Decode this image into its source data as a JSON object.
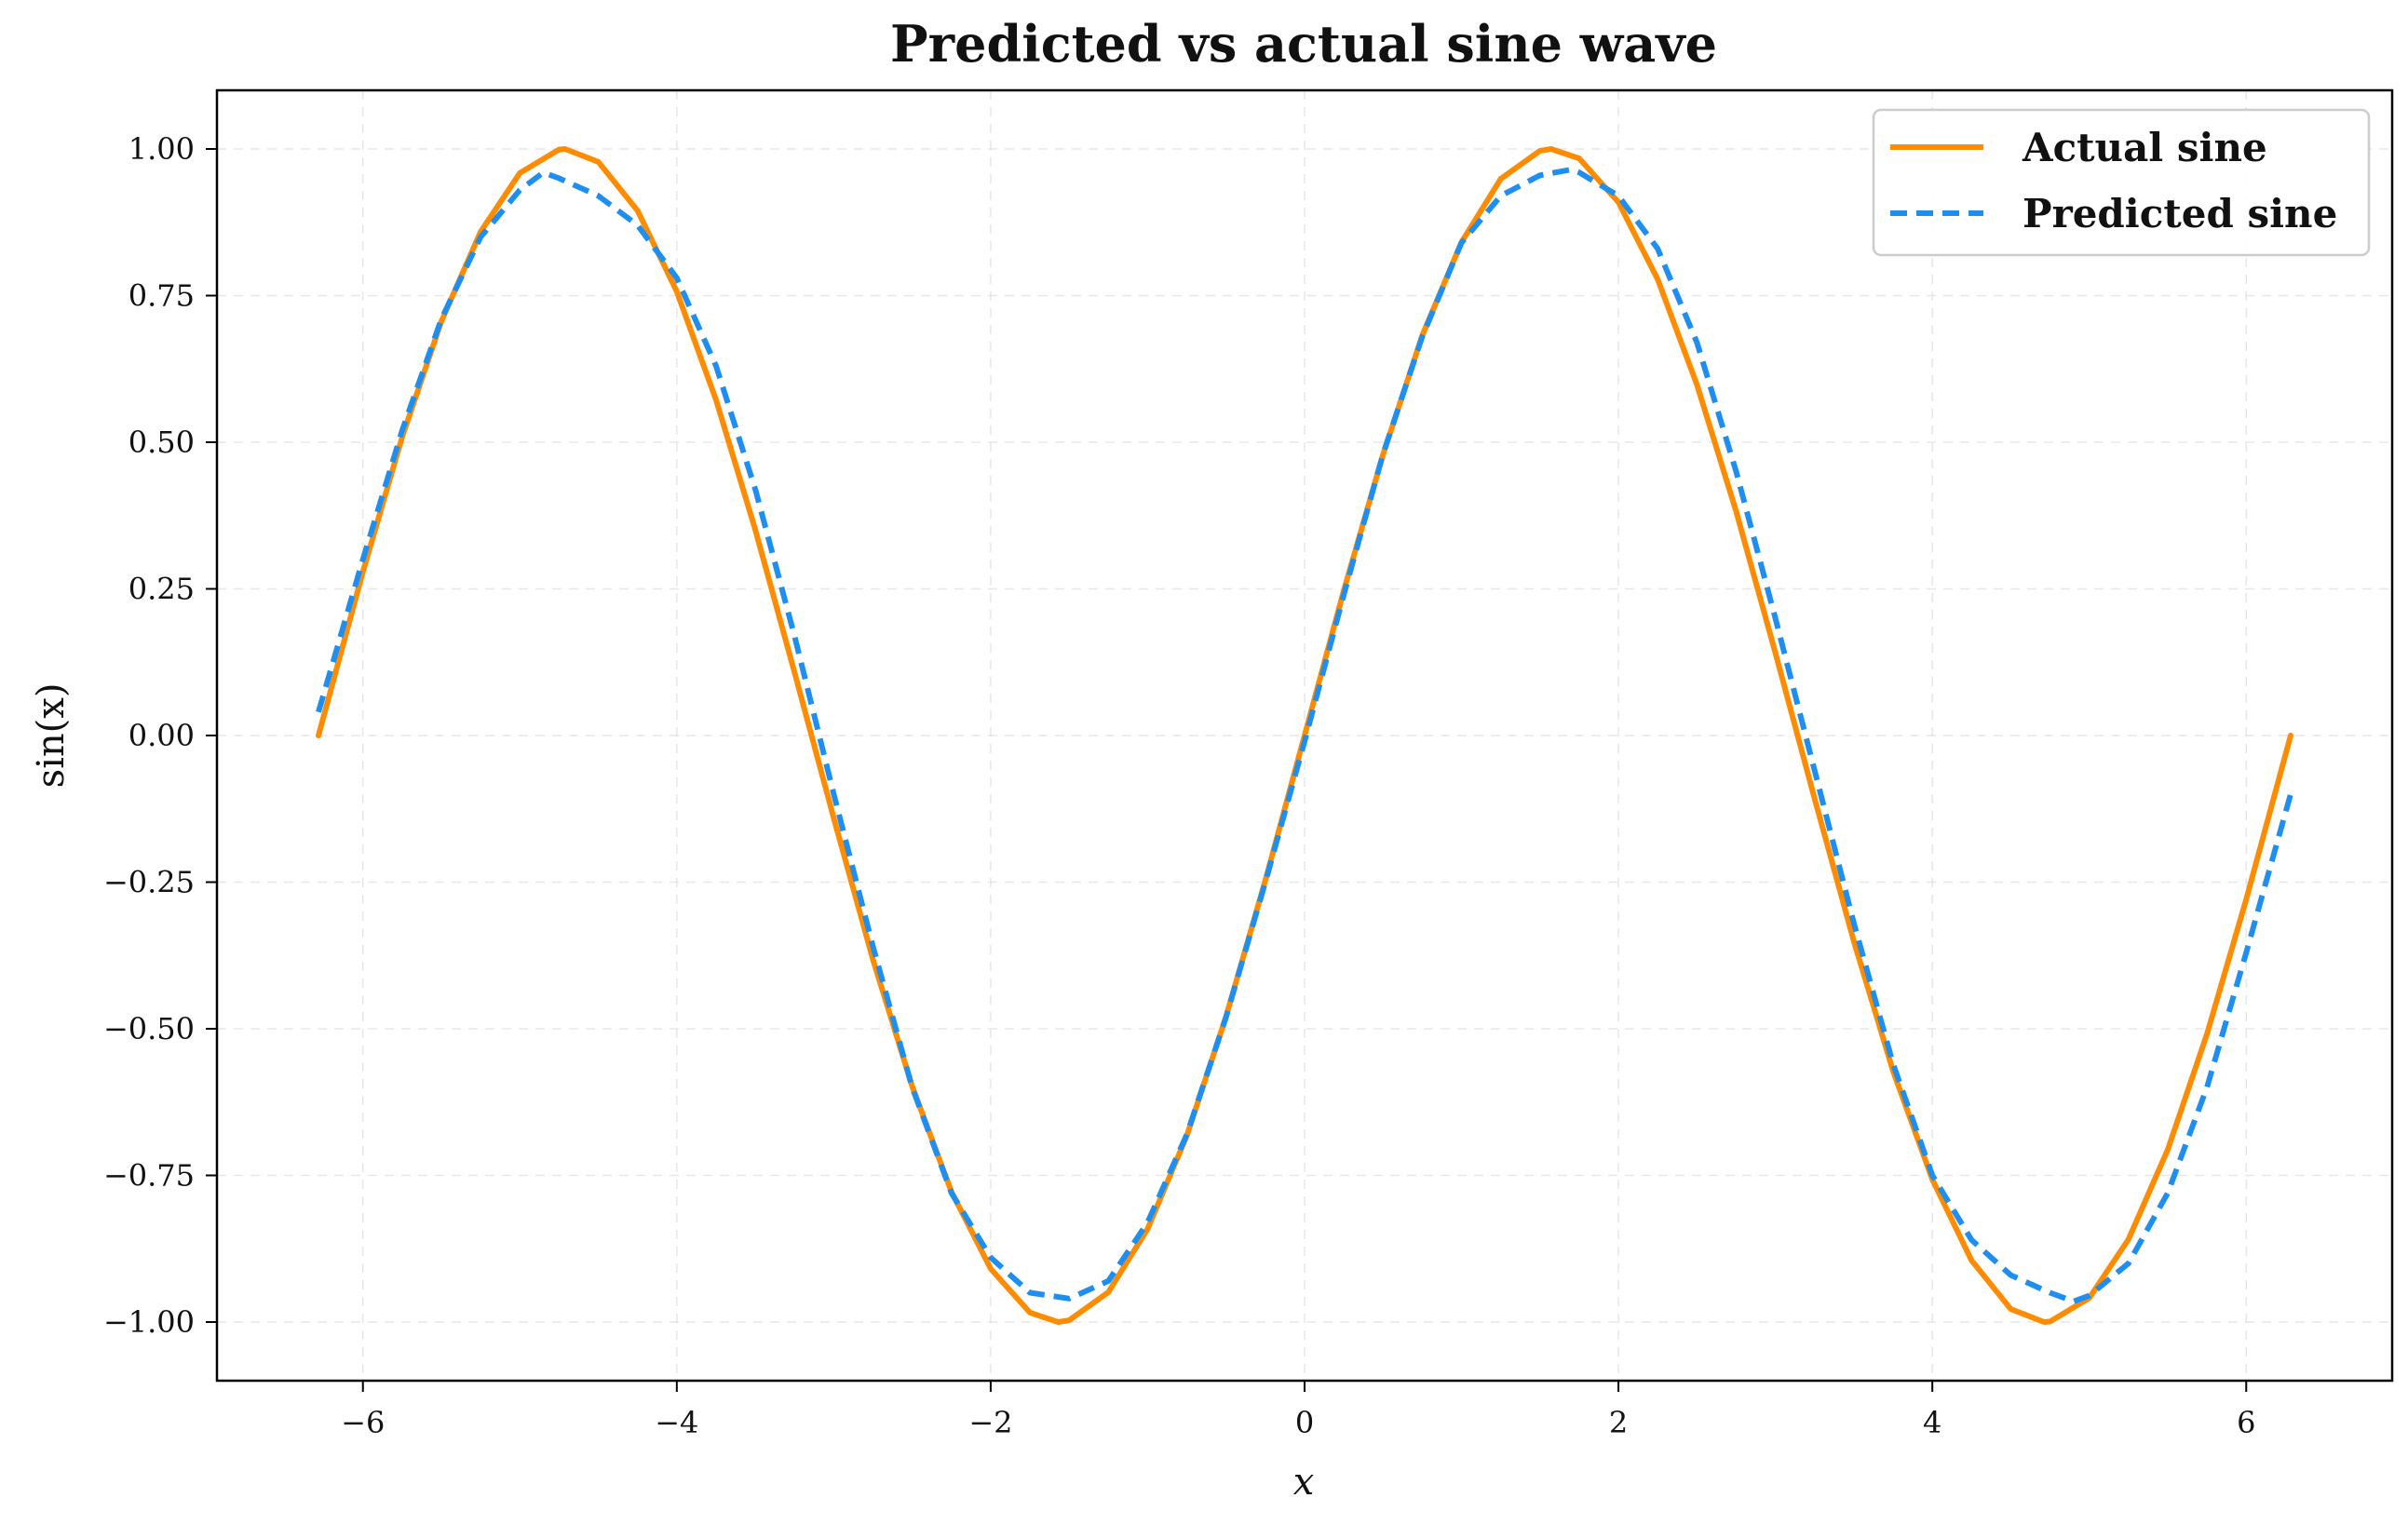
{
  "chart_data": {
    "type": "line",
    "title": "Predicted vs actual sine wave",
    "xlabel": "x",
    "ylabel": "sin(x)",
    "xlim": [
      -6.93,
      6.93
    ],
    "ylim": [
      -1.1,
      1.1
    ],
    "x_ticks": [
      -6,
      -4,
      -2,
      0,
      2,
      4,
      6
    ],
    "x_tick_labels": [
      "−6",
      "−4",
      "−2",
      "0",
      "2",
      "4",
      "6"
    ],
    "y_ticks": [
      1.0,
      0.75,
      0.5,
      0.25,
      0.0,
      -0.25,
      -0.5,
      -0.75,
      -1.0
    ],
    "y_tick_labels": [
      "1.00",
      "0.75",
      "0.50",
      "0.25",
      "0.00",
      "−0.25",
      "−0.50",
      "−0.75",
      "−1.00"
    ],
    "grid": true,
    "legend_position": "top-right",
    "series": [
      {
        "name": "Actual sine",
        "color": "#ff8c00",
        "style": "solid",
        "x": [
          -6.2832,
          -6.0,
          -5.75,
          -5.5,
          -5.25,
          -5.0,
          -4.75,
          -4.7124,
          -4.5,
          -4.25,
          -4.0,
          -3.75,
          -3.5,
          -3.25,
          -3.0,
          -2.75,
          -2.5,
          -2.25,
          -2.0,
          -1.75,
          -1.5708,
          -1.5,
          -1.25,
          -1.0,
          -0.75,
          -0.5,
          -0.25,
          0.0,
          0.25,
          0.5,
          0.75,
          1.0,
          1.25,
          1.5,
          1.5708,
          1.75,
          2.0,
          2.25,
          2.5,
          2.75,
          3.0,
          3.25,
          3.5,
          3.75,
          4.0,
          4.25,
          4.5,
          4.7124,
          4.75,
          5.0,
          5.25,
          5.5,
          5.75,
          6.0,
          6.2832
        ],
        "y": [
          0.0,
          0.279,
          0.509,
          0.706,
          0.859,
          0.959,
          0.999,
          1.0,
          0.978,
          0.895,
          0.757,
          0.572,
          0.351,
          0.108,
          -0.141,
          -0.382,
          -0.598,
          -0.778,
          -0.909,
          -0.984,
          -1.0,
          -0.997,
          -0.949,
          -0.841,
          -0.682,
          -0.479,
          -0.247,
          0.0,
          0.247,
          0.479,
          0.682,
          0.841,
          0.949,
          0.997,
          1.0,
          0.984,
          0.909,
          0.778,
          0.598,
          0.382,
          0.141,
          -0.108,
          -0.351,
          -0.572,
          -0.757,
          -0.895,
          -0.978,
          -1.0,
          -0.999,
          -0.959,
          -0.859,
          -0.706,
          -0.509,
          -0.279,
          0.0
        ]
      },
      {
        "name": "Predicted sine",
        "color": "#1e8ff0",
        "style": "dashed",
        "x": [
          -6.2832,
          -6.0,
          -5.75,
          -5.5,
          -5.25,
          -5.0,
          -4.85,
          -4.75,
          -4.5,
          -4.25,
          -4.0,
          -3.75,
          -3.5,
          -3.25,
          -3.0,
          -2.75,
          -2.5,
          -2.25,
          -2.0,
          -1.75,
          -1.5,
          -1.25,
          -1.0,
          -0.75,
          -0.5,
          -0.25,
          0.0,
          0.25,
          0.5,
          0.75,
          1.0,
          1.25,
          1.5,
          1.7,
          1.75,
          2.0,
          2.25,
          2.5,
          2.75,
          3.0,
          3.25,
          3.5,
          3.75,
          4.0,
          4.25,
          4.5,
          4.75,
          4.9,
          5.0,
          5.25,
          5.5,
          5.75,
          6.0,
          6.2832
        ],
        "y": [
          0.04,
          0.3,
          0.52,
          0.71,
          0.85,
          0.93,
          0.96,
          0.95,
          0.92,
          0.87,
          0.78,
          0.63,
          0.42,
          0.17,
          -0.1,
          -0.36,
          -0.6,
          -0.78,
          -0.89,
          -0.95,
          -0.96,
          -0.93,
          -0.83,
          -0.68,
          -0.48,
          -0.25,
          -0.01,
          0.24,
          0.48,
          0.68,
          0.84,
          0.92,
          0.955,
          0.965,
          0.96,
          0.92,
          0.83,
          0.67,
          0.45,
          0.2,
          -0.06,
          -0.32,
          -0.56,
          -0.75,
          -0.86,
          -0.92,
          -0.95,
          -0.965,
          -0.955,
          -0.9,
          -0.78,
          -0.6,
          -0.37,
          -0.1
        ]
      }
    ]
  }
}
